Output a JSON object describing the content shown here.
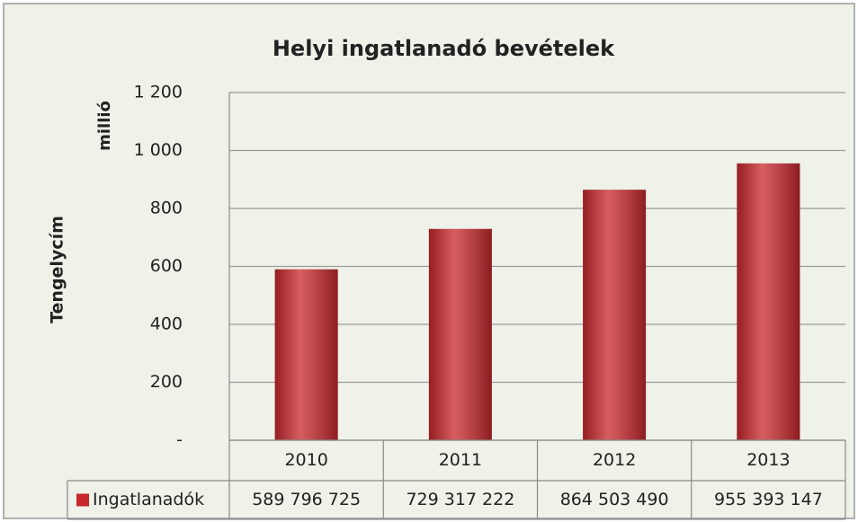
{
  "chart_data": {
    "type": "bar",
    "title": "Helyi ingatlanadó bevételek",
    "y_label": "Tengelycím",
    "unit_label": "millió",
    "categories": [
      "2010",
      "2011",
      "2012",
      "2013"
    ],
    "series": [
      {
        "name": "Ingatlanadók",
        "color": "#c8282d",
        "values": [
          589.796725,
          729.317222,
          864.50349,
          955.393147
        ],
        "value_labels": [
          "589 796 725",
          "729 317 222",
          "864 503 490",
          "955 393 147"
        ]
      }
    ],
    "ylim": [
      0,
      1200
    ],
    "yticks": [
      {
        "value": 0,
        "label": "-"
      },
      200,
      400,
      600,
      800,
      {
        "value": 1000,
        "label": "1 000"
      },
      {
        "value": 1200,
        "label": "1 200"
      }
    ],
    "grid": true,
    "legend": "table"
  }
}
